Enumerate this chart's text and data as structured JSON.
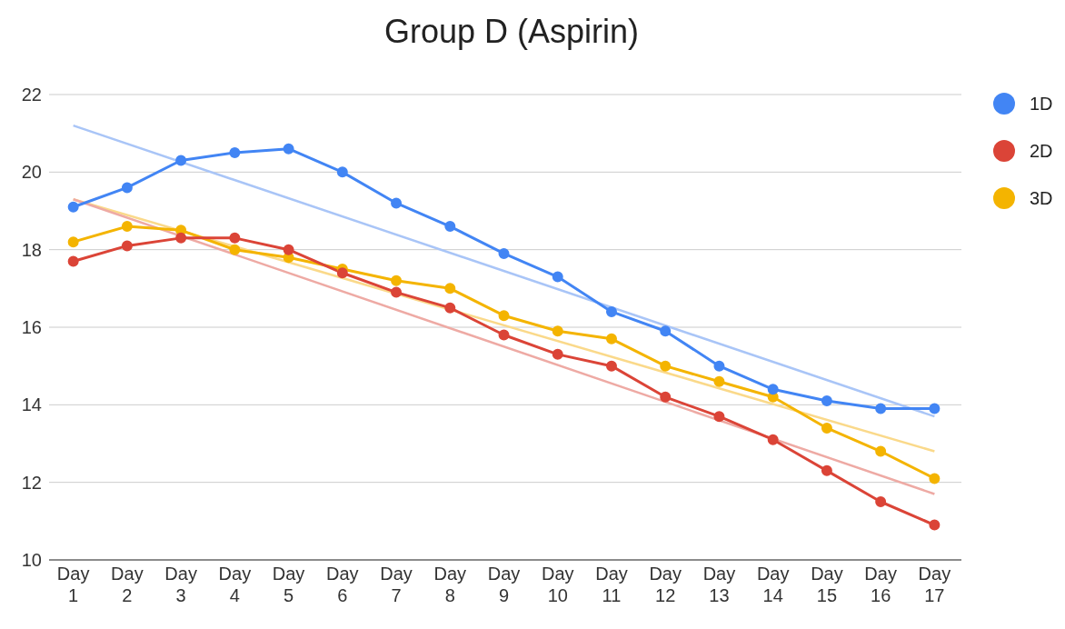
{
  "chart_data": {
    "type": "line",
    "title": "Group D (Aspirin)",
    "categories": [
      "Day 1",
      "Day 2",
      "Day 3",
      "Day 4",
      "Day 5",
      "Day 6",
      "Day 7",
      "Day 8",
      "Day 9",
      "Day 10",
      "Day 11",
      "Day 12",
      "Day 13",
      "Day 14",
      "Day 15",
      "Day 16",
      "Day 17"
    ],
    "series": [
      {
        "name": "1D",
        "color": "#4285f4",
        "values": [
          19.1,
          19.6,
          20.3,
          20.5,
          20.6,
          20.0,
          19.2,
          18.6,
          17.9,
          17.3,
          16.4,
          15.9,
          15.0,
          14.4,
          14.1,
          13.9,
          13.9
        ]
      },
      {
        "name": "2D",
        "color": "#db4437",
        "values": [
          17.7,
          18.1,
          18.3,
          18.3,
          18.0,
          17.4,
          16.9,
          16.5,
          15.8,
          15.3,
          15.0,
          14.2,
          13.7,
          13.1,
          12.3,
          11.5,
          10.9
        ]
      },
      {
        "name": "3D",
        "color": "#f4b400",
        "values": [
          18.2,
          18.6,
          18.5,
          18.0,
          17.8,
          17.5,
          17.2,
          17.0,
          16.3,
          15.9,
          15.7,
          15.0,
          14.6,
          14.2,
          13.4,
          12.8,
          12.1
        ]
      },
      {
        "type": "line",
        "color": "#a9c5f7",
        "marker": "none",
        "x": [
          "Day 1",
          "Day 17"
        ],
        "values": [
          21.2,
          13.7
        ]
      },
      {
        "type": "line",
        "color": "#eeaaa4",
        "marker": "none",
        "x": [
          "Day 1",
          "Day 17"
        ],
        "values": [
          19.3,
          11.7
        ]
      },
      {
        "type": "line",
        "color": "#fad98a",
        "marker": "none",
        "x": [
          "Day 1",
          "Day 17"
        ],
        "values": [
          19.3,
          12.8
        ]
      }
    ],
    "ylim": [
      10,
      22
    ],
    "yticks": [
      10,
      12,
      14,
      16,
      18,
      20,
      22
    ],
    "grid": "y",
    "legend": "right",
    "marker": "circle",
    "line_style": "solid"
  }
}
